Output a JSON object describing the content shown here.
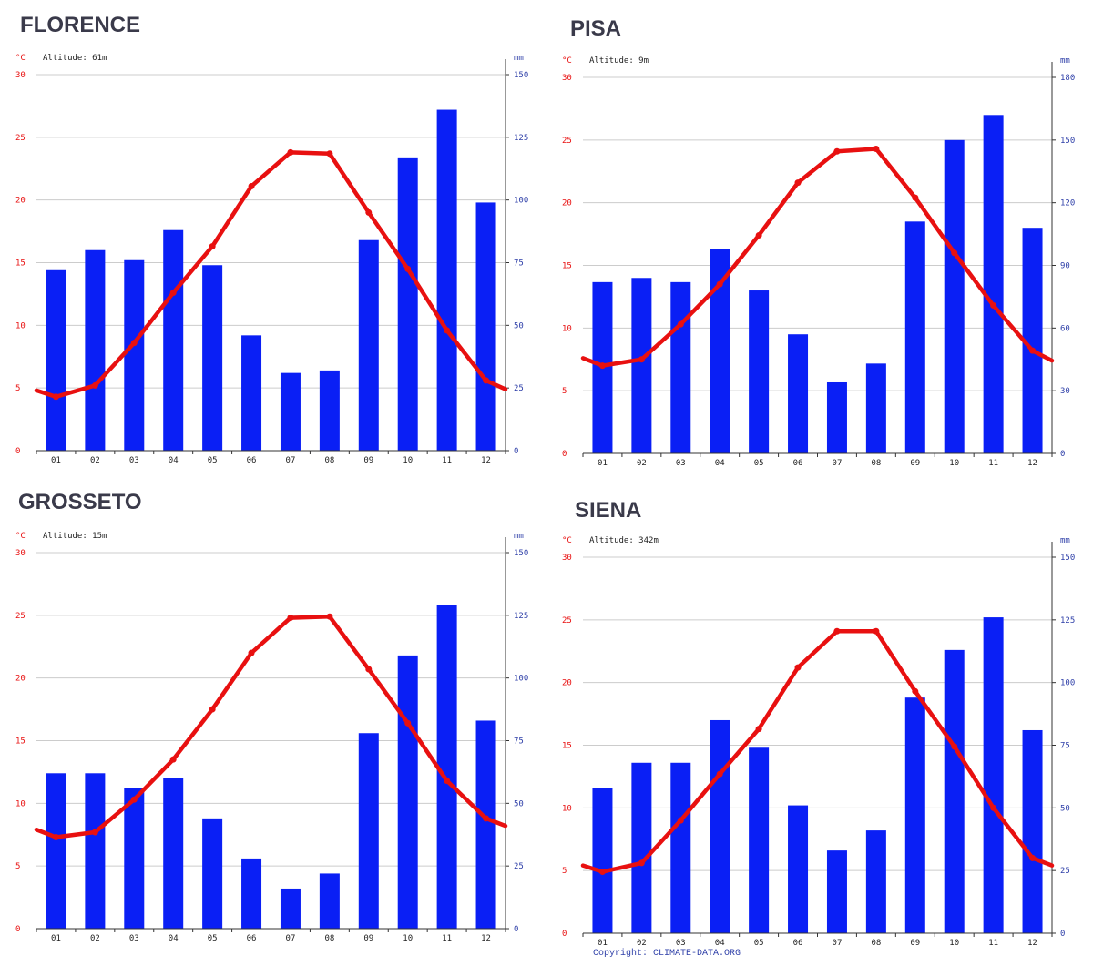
{
  "copyright": "Copyright: CLIMATE-DATA.ORG",
  "colors": {
    "temp_line": "#e81010",
    "precip_bar": "#0a1ff5",
    "grid": "#cccccc",
    "axis": "#333333"
  },
  "chart_data": [
    {
      "type": "bar",
      "title": "FLORENCE",
      "altitude_label": "Altitude: 61m",
      "y_left_unit": "°C",
      "y_right_unit": "mm",
      "categories": [
        "01",
        "02",
        "03",
        "04",
        "05",
        "06",
        "07",
        "08",
        "09",
        "10",
        "11",
        "12"
      ],
      "ylim_left": [
        0,
        30
      ],
      "ylim_right": [
        0,
        150
      ],
      "yticks_left": [
        0,
        5,
        10,
        15,
        20,
        25,
        30
      ],
      "yticks_right": [
        0,
        25,
        50,
        75,
        100,
        125,
        150
      ],
      "grid": true,
      "series": [
        {
          "name": "Precipitation",
          "axis": "right",
          "type": "bar",
          "values": [
            72,
            80,
            76,
            88,
            74,
            46,
            31,
            32,
            84,
            117,
            136,
            99
          ]
        },
        {
          "name": "Temperature",
          "axis": "left",
          "type": "line",
          "values": [
            4.3,
            5.2,
            8.6,
            12.6,
            16.3,
            21.1,
            23.8,
            23.7,
            19.0,
            14.5,
            9.6,
            5.6
          ],
          "edge_values": [
            4.8,
            4.9
          ]
        }
      ]
    },
    {
      "type": "bar",
      "title": "PISA",
      "altitude_label": "Altitude: 9m",
      "y_left_unit": "°C",
      "y_right_unit": "mm",
      "categories": [
        "01",
        "02",
        "03",
        "04",
        "05",
        "06",
        "07",
        "08",
        "09",
        "10",
        "11",
        "12"
      ],
      "ylim_left": [
        0,
        30
      ],
      "ylim_right": [
        0,
        180
      ],
      "yticks_left": [
        0,
        5,
        10,
        15,
        20,
        25,
        30
      ],
      "yticks_right": [
        0,
        30,
        60,
        90,
        120,
        150,
        180
      ],
      "grid": true,
      "series": [
        {
          "name": "Precipitation",
          "axis": "right",
          "type": "bar",
          "values": [
            82,
            84,
            82,
            98,
            78,
            57,
            34,
            43,
            111,
            150,
            162,
            108
          ]
        },
        {
          "name": "Temperature",
          "axis": "left",
          "type": "line",
          "values": [
            7.0,
            7.5,
            10.3,
            13.5,
            17.4,
            21.6,
            24.1,
            24.3,
            20.4,
            16.0,
            11.8,
            8.2
          ],
          "edge_values": [
            7.6,
            7.4
          ]
        }
      ]
    },
    {
      "type": "bar",
      "title": "GROSSETO",
      "altitude_label": "Altitude: 15m",
      "y_left_unit": "°C",
      "y_right_unit": "mm",
      "categories": [
        "01",
        "02",
        "03",
        "04",
        "05",
        "06",
        "07",
        "08",
        "09",
        "10",
        "11",
        "12"
      ],
      "ylim_left": [
        0,
        30
      ],
      "ylim_right": [
        0,
        150
      ],
      "yticks_left": [
        0,
        5,
        10,
        15,
        20,
        25,
        30
      ],
      "yticks_right": [
        0,
        25,
        50,
        75,
        100,
        125,
        150
      ],
      "grid": true,
      "series": [
        {
          "name": "Precipitation",
          "axis": "right",
          "type": "bar",
          "values": [
            62,
            62,
            56,
            60,
            44,
            28,
            16,
            22,
            78,
            109,
            129,
            83
          ]
        },
        {
          "name": "Temperature",
          "axis": "left",
          "type": "line",
          "values": [
            7.3,
            7.7,
            10.3,
            13.5,
            17.5,
            22.0,
            24.8,
            24.9,
            20.7,
            16.4,
            11.8,
            8.8
          ],
          "edge_values": [
            7.9,
            8.2
          ]
        }
      ]
    },
    {
      "type": "bar",
      "title": "SIENA",
      "altitude_label": "Altitude: 342m",
      "y_left_unit": "°C",
      "y_right_unit": "mm",
      "categories": [
        "01",
        "02",
        "03",
        "04",
        "05",
        "06",
        "07",
        "08",
        "09",
        "10",
        "11",
        "12"
      ],
      "ylim_left": [
        0,
        30
      ],
      "ylim_right": [
        0,
        150
      ],
      "yticks_left": [
        0,
        5,
        10,
        15,
        20,
        25,
        30
      ],
      "yticks_right": [
        0,
        25,
        50,
        75,
        100,
        125,
        150
      ],
      "grid": true,
      "series": [
        {
          "name": "Precipitation",
          "axis": "right",
          "type": "bar",
          "values": [
            58,
            68,
            68,
            85,
            74,
            51,
            33,
            41,
            94,
            113,
            126,
            81
          ]
        },
        {
          "name": "Temperature",
          "axis": "left",
          "type": "line",
          "values": [
            4.9,
            5.6,
            9.0,
            12.7,
            16.3,
            21.2,
            24.1,
            24.1,
            19.3,
            14.9,
            10.0,
            6.0
          ],
          "edge_values": [
            5.4,
            5.4
          ]
        }
      ]
    }
  ]
}
